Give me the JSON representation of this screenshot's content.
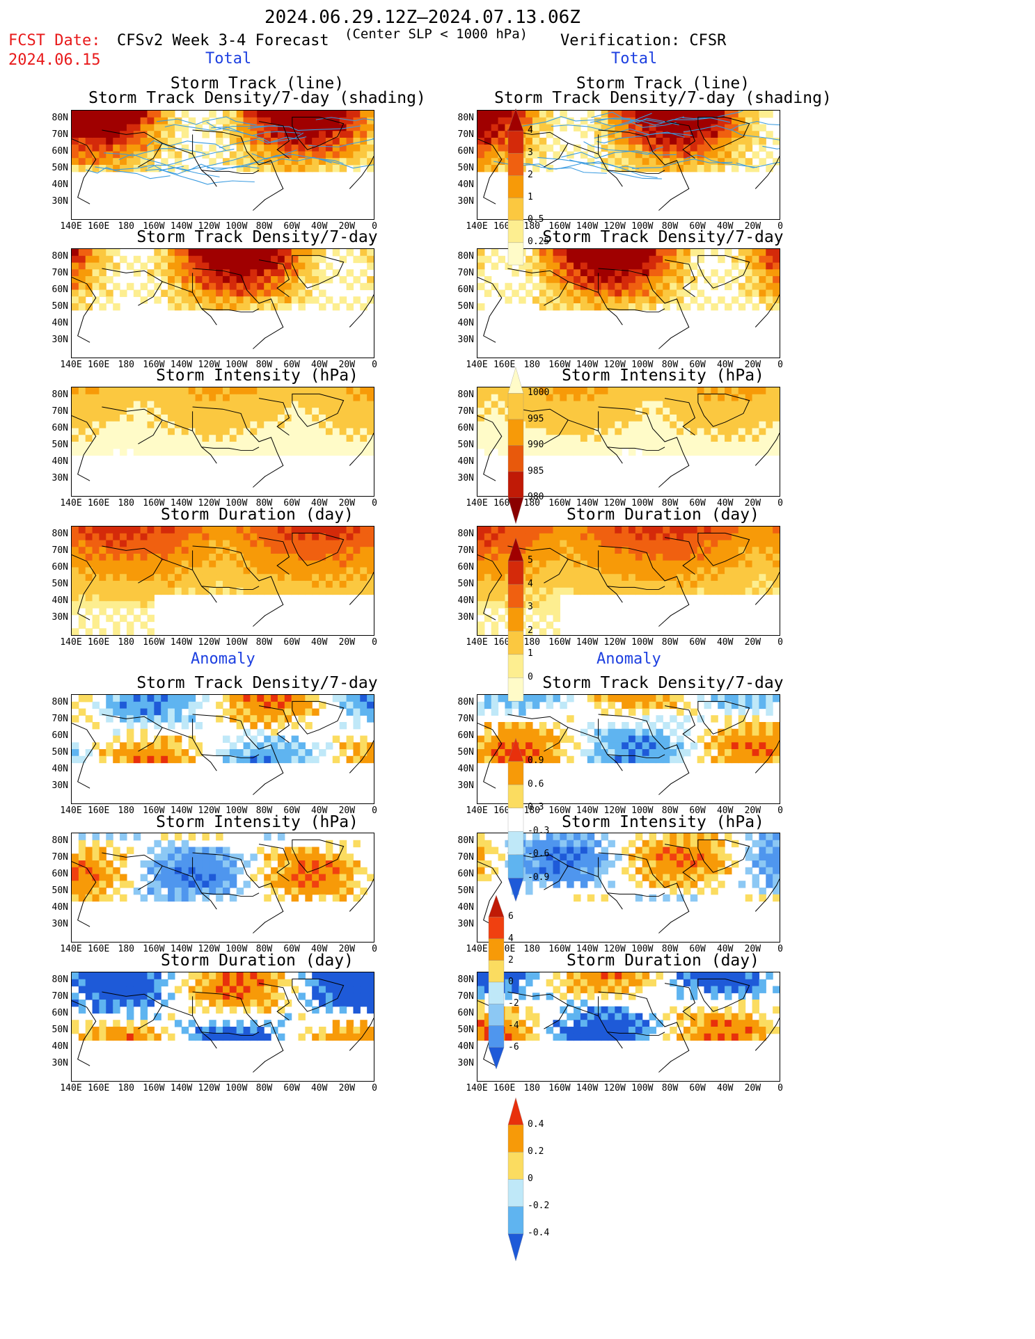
{
  "header": {
    "period": "2024.06.29.12Z–2024.07.13.06Z",
    "fcst_label": "FCST Date:",
    "fcst_date": "2024.06.15",
    "model_title": "CFSv2 Week 3-4 Forecast",
    "criterion": "(Center SLP < 1000 hPa)",
    "verification": "Verification: CFSR",
    "left_section_total": "Total",
    "right_section_total": "Total",
    "left_section_anomaly": "Anomaly",
    "right_section_anomaly": "Anomaly"
  },
  "panel_titles": {
    "track_line": "Storm Track (line)",
    "track_density_shading": "Storm Track Density/7-day (shading)",
    "track_density": "Storm Track Density/7-day",
    "intensity": "Storm Intensity (hPa)",
    "duration": "Storm Duration (day)"
  },
  "axes": {
    "lat_ticks": [
      "80N",
      "70N",
      "60N",
      "50N",
      "40N",
      "30N"
    ],
    "lon_ticks": [
      "140E",
      "160E",
      "180",
      "160W",
      "140W",
      "120W",
      "100W",
      "80W",
      "60W",
      "40W",
      "20W",
      "0"
    ]
  },
  "colorbars": {
    "density_total": {
      "labels": [
        "4",
        "3",
        "2",
        "1",
        "0.5",
        "0.25"
      ],
      "colors": [
        "#a00000",
        "#d42a0a",
        "#f06010",
        "#f79a08",
        "#fbc840",
        "#fdee90",
        "#fffbc8"
      ]
    },
    "intensity_total": {
      "labels": [
        "1000",
        "995",
        "990",
        "985",
        "980"
      ],
      "colors": [
        "#fffbc8",
        "#fbc840",
        "#f79a08",
        "#e8590c",
        "#c01a06",
        "#8a0000"
      ]
    },
    "duration_total": {
      "labels": [
        "5",
        "4",
        "3",
        "2",
        "1",
        "0"
      ],
      "colors": [
        "#a00000",
        "#d42a0a",
        "#f06010",
        "#f79a08",
        "#fbc840",
        "#fdee90",
        "#fffbc8"
      ]
    },
    "density_anom": {
      "labels": [
        "0.9",
        "0.6",
        "0.3",
        "-0.3",
        "-0.6",
        "-0.9"
      ],
      "colors": [
        "#e8300c",
        "#f79a08",
        "#fbdc60",
        "#ffffff",
        "#bfe8f8",
        "#5fb4f0",
        "#1e5ad8"
      ]
    },
    "intensity_anom": {
      "labels": [
        "6",
        "4",
        "2",
        "0",
        "-2",
        "-4",
        "-6"
      ],
      "colors": [
        "#c01a06",
        "#f04010",
        "#f79a08",
        "#fbdc60",
        "#bfe8f8",
        "#8cc8f4",
        "#4f96ee",
        "#1e5ad8"
      ]
    },
    "duration_anom": {
      "labels": [
        "0.4",
        "0.2",
        "0",
        "-0.2",
        "-0.4"
      ],
      "colors": [
        "#e8300c",
        "#f79a08",
        "#fbdc60",
        "#bfe8f8",
        "#5fb4f0",
        "#1e5ad8"
      ]
    }
  }
}
